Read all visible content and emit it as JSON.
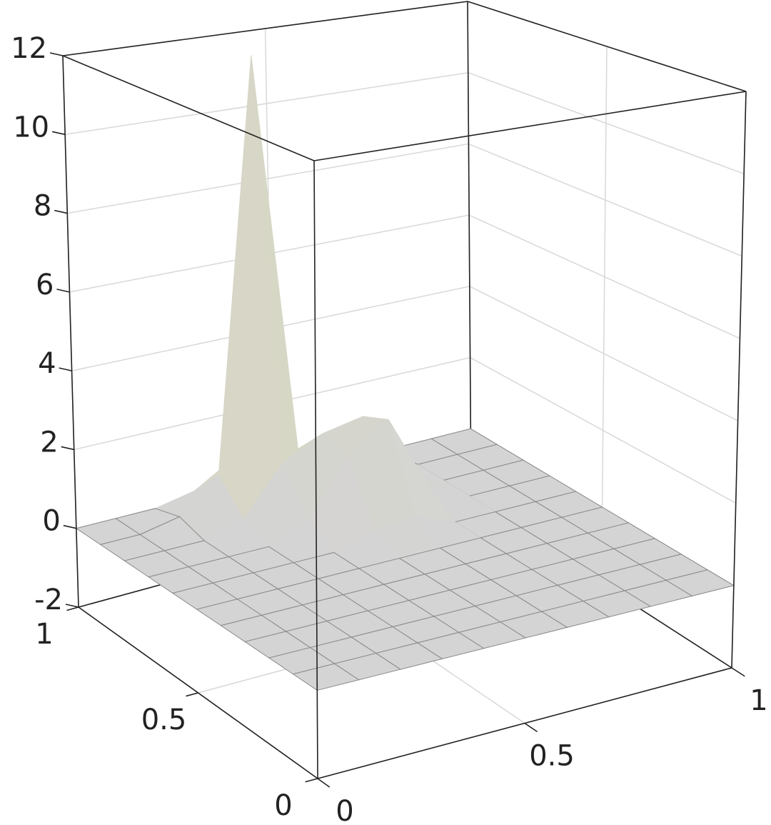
{
  "chart_data": {
    "type": "surface",
    "x": [
      0,
      0.1,
      0.2,
      0.3,
      0.4,
      0.5,
      0.6,
      0.7,
      0.8,
      0.9,
      1
    ],
    "y": [
      0,
      0.1,
      0.2,
      0.3,
      0.4,
      0.5,
      0.6,
      0.7,
      0.8,
      0.9,
      1
    ],
    "z": [
      [
        0,
        0,
        0,
        0,
        0,
        0,
        0,
        0,
        0,
        0,
        0
      ],
      [
        0,
        0,
        0,
        0,
        0,
        0,
        0,
        0,
        0,
        0,
        0
      ],
      [
        0,
        0,
        0,
        0,
        0,
        0,
        0,
        0,
        0,
        0,
        0
      ],
      [
        0,
        0,
        0,
        0,
        0,
        0,
        0,
        0,
        0,
        0,
        0
      ],
      [
        0,
        0,
        0,
        0,
        0,
        0,
        0,
        0,
        0,
        0,
        0
      ],
      [
        0,
        0,
        0,
        0,
        0,
        0,
        0,
        0,
        0,
        0,
        0
      ],
      [
        0,
        0,
        0,
        0,
        0,
        0.3,
        0.4,
        0,
        0,
        0,
        0
      ],
      [
        0,
        0,
        0,
        0,
        0.4,
        1.8,
        2.5,
        0.5,
        0,
        0,
        0
      ],
      [
        0,
        0,
        0,
        0.3,
        1.5,
        2.0,
        2.2,
        0.4,
        0,
        0,
        0
      ],
      [
        0,
        0,
        0.2,
        1.0,
        11.7,
        1.2,
        0.3,
        0,
        0,
        0,
        0
      ],
      [
        0,
        0,
        0,
        0.2,
        0.8,
        0.2,
        0,
        0,
        0,
        0,
        0
      ]
    ],
    "xlim": [
      0,
      1
    ],
    "xticks": [
      0,
      0.5,
      1
    ],
    "ylim": [
      0,
      1
    ],
    "yticks": [
      0,
      0.5,
      1
    ],
    "zlim": [
      -2,
      12
    ],
    "zticks": [
      -2,
      0,
      2,
      4,
      6,
      8,
      10,
      12
    ],
    "grid": true,
    "colormap": [
      "#d4d4d4",
      "#d9d8bf",
      "#6a3a3f"
    ]
  }
}
